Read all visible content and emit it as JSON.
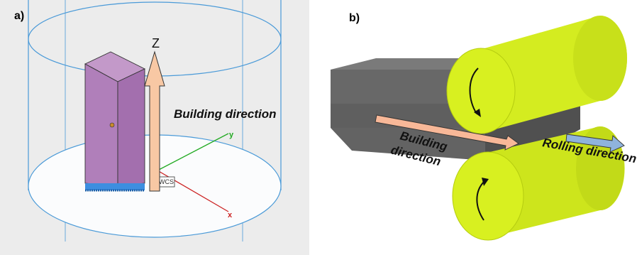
{
  "panel_a": {
    "label": "a)",
    "axis_z": "Z",
    "axis_x": "x",
    "axis_y": "y",
    "wcs": "WCS",
    "direction_label": "Building direction",
    "colors": {
      "background": "#ececec",
      "specimen": "#b07fba",
      "arrow": "#f8c8a4",
      "cylinder_lines": "#4a9ad8",
      "axis_x": "#cc2222",
      "axis_y": "#22aa22"
    }
  },
  "panel_b": {
    "label": "b)",
    "building_direction_line1": "Building",
    "building_direction_line2": "direction",
    "rolling_direction": "Rolling direction",
    "colors": {
      "block": "#5f5f5f",
      "roller": "#d8f020",
      "building_arrow": "#f8b898",
      "rolling_arrow": "#8fb3dc"
    }
  }
}
